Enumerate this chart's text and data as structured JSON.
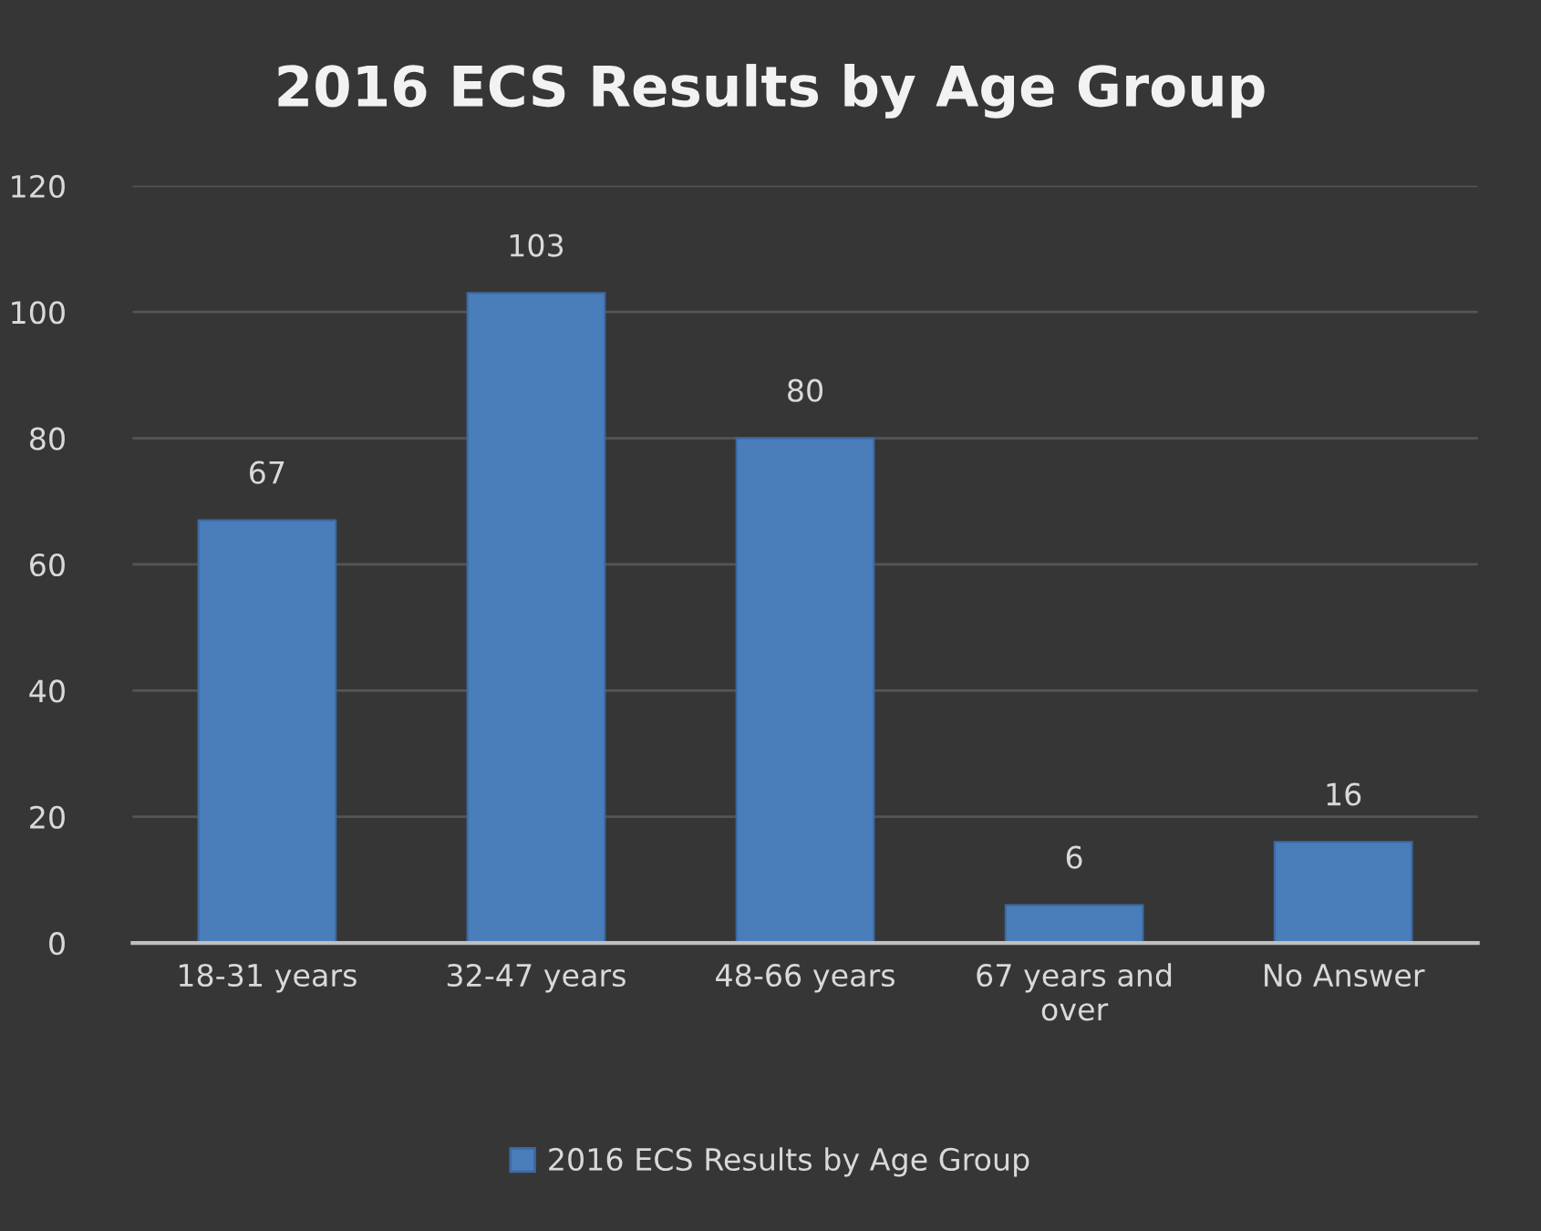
{
  "chart_data": {
    "type": "bar",
    "title": "2016 ECS Results by Age Group",
    "categories": [
      "18-31 years",
      "32-47 years",
      "48-66 years",
      "67 years and over",
      "No Answer"
    ],
    "series": [
      {
        "name": "2016 ECS Results by Age Group",
        "color": "#4a7ebb",
        "values": [
          67,
          103,
          80,
          6,
          16
        ]
      }
    ],
    "ylim": [
      0,
      120
    ],
    "yticks": [
      0,
      20,
      40,
      60,
      80,
      100,
      120
    ],
    "grid": "y",
    "legend": "bottom",
    "data_labels": true
  }
}
